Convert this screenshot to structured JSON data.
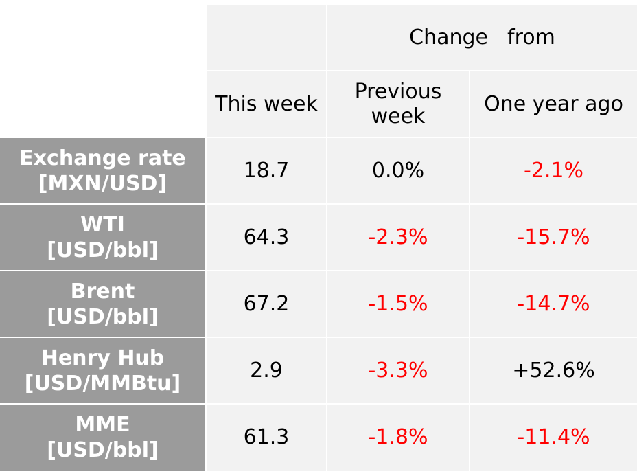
{
  "header": {
    "group_word1": "Change",
    "group_word2": "from",
    "col_this_week": "This week",
    "col_prev_line1": "Previous",
    "col_prev_line2": "week",
    "col_year": "One year ago"
  },
  "rows": [
    {
      "label1": "Exchange rate",
      "label2": "[MXN/USD]",
      "this_week": "18.7",
      "prev_week": "0.0%",
      "year_ago": "-2.1%"
    },
    {
      "label1": "WTI",
      "label2": "[USD/bbl]",
      "this_week": "64.3",
      "prev_week": "-2.3%",
      "year_ago": "-15.7%"
    },
    {
      "label1": "Brent",
      "label2": "[USD/bbl]",
      "this_week": "67.2",
      "prev_week": "-1.5%",
      "year_ago": "-14.7%"
    },
    {
      "label1": "Henry Hub",
      "label2": "[USD/MMBtu]",
      "this_week": "2.9",
      "prev_week": "-3.3%",
      "year_ago": "+52.6%"
    },
    {
      "label1": "MME",
      "label2": "[USD/bbl]",
      "this_week": "61.3",
      "prev_week": "-1.8%",
      "year_ago": "-11.4%"
    }
  ],
  "colors": {
    "negative": "#ff0000",
    "neutral": "#000000",
    "header_bg": "#9b9b9b",
    "cell_bg": "#f2f2f2"
  }
}
